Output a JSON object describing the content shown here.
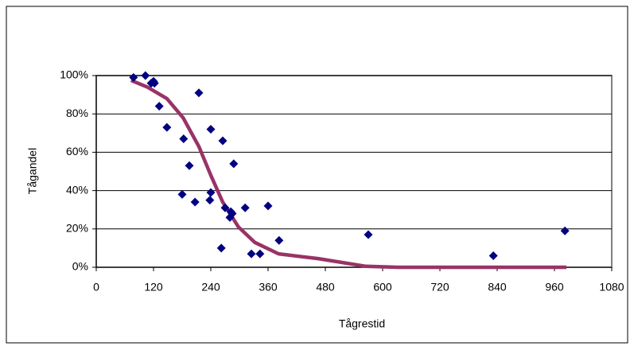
{
  "chart_data": {
    "type": "scatter",
    "xlabel": "Tågrestid",
    "ylabel": "Tågandel",
    "xlim": [
      0,
      1080
    ],
    "xticks": [
      0,
      120,
      240,
      360,
      480,
      600,
      720,
      840,
      960,
      1080
    ],
    "ylim": [
      0,
      100
    ],
    "yticks": [
      {
        "value": 0,
        "label": "0%"
      },
      {
        "value": 20,
        "label": "20%"
      },
      {
        "value": 40,
        "label": "40%"
      },
      {
        "value": 60,
        "label": "60%"
      },
      {
        "value": 80,
        "label": "80%"
      },
      {
        "value": 100,
        "label": "100%"
      }
    ],
    "grid": true,
    "series": [
      {
        "type": "scatter",
        "color": "#000080",
        "x": [
          78,
          103,
          115,
          120,
          122,
          132,
          148,
          215,
          183,
          195,
          180,
          207,
          240,
          265,
          288,
          240,
          238,
          270,
          282,
          280,
          285,
          262,
          312,
          360,
          383,
          325,
          343,
          570,
          832,
          982
        ],
        "values": [
          99,
          100,
          96,
          97,
          96,
          84,
          73,
          91,
          67,
          53,
          38,
          34,
          72,
          66,
          54,
          39,
          35,
          31,
          29,
          26,
          28,
          10,
          31,
          32,
          14,
          7,
          7,
          17,
          6,
          19
        ]
      },
      {
        "type": "line",
        "color": "#993366",
        "x": [
          73,
          107,
          148,
          182,
          215,
          240,
          265,
          298,
          332,
          382,
          465,
          565,
          632,
          985
        ],
        "values": [
          97.5,
          94,
          88,
          78,
          63,
          48,
          34,
          21,
          13,
          7,
          4.5,
          0.5,
          0,
          0
        ]
      }
    ]
  }
}
